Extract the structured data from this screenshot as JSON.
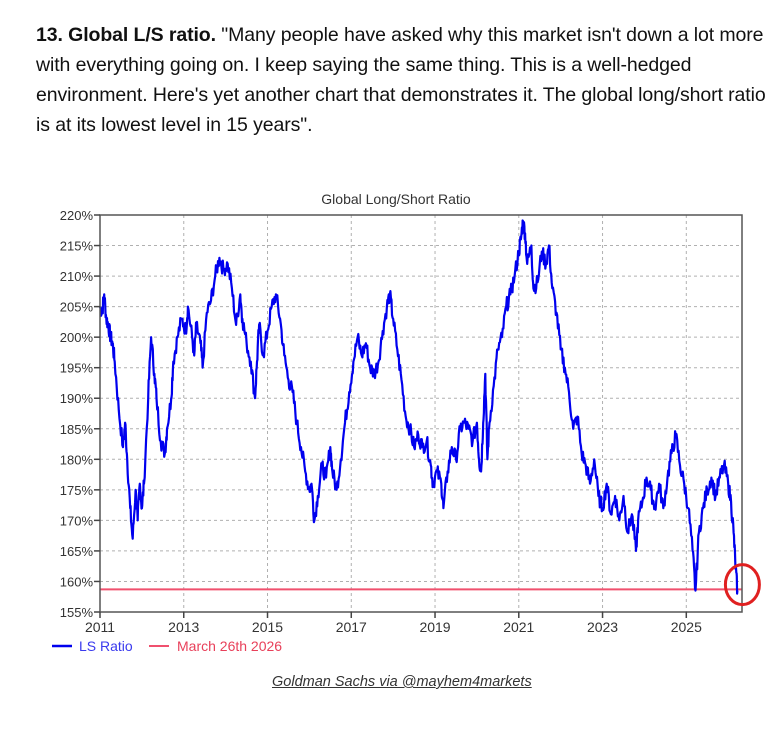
{
  "article": {
    "heading": "13. Global L/S ratio.",
    "quote": " \"Many people have asked why this market isn't down a lot more with everything going on. I keep saying the same thing. This is a well-hedged environment. Here's yet another chart that demonstrates it. The global long/short ratio is at its lowest level in 15 years\"."
  },
  "credit": "Goldman Sachs via @mayhem4markets",
  "colors": {
    "series": "#0000ee",
    "reference": "#f0506e",
    "highlight": "#e02020",
    "grid": "#b0b0b0",
    "axis": "#444444"
  },
  "chart_data": {
    "type": "line",
    "title": "Global Long/Short Ratio",
    "xlabel": "",
    "ylabel": "",
    "xlim": [
      2011,
      2026.33
    ],
    "ylim": [
      155,
      220
    ],
    "x_ticks": [
      "2011",
      "2013",
      "2015",
      "2017",
      "2019",
      "2021",
      "2023",
      "2025"
    ],
    "x_tick_values": [
      2011,
      2013,
      2015,
      2017,
      2019,
      2021,
      2023,
      2025
    ],
    "y_ticks": [
      "155%",
      "160%",
      "165%",
      "170%",
      "175%",
      "180%",
      "185%",
      "190%",
      "195%",
      "200%",
      "205%",
      "210%",
      "215%",
      "220%"
    ],
    "y_tick_values": [
      155,
      160,
      165,
      170,
      175,
      180,
      185,
      190,
      195,
      200,
      205,
      210,
      215,
      220
    ],
    "grid": true,
    "legend": {
      "position": "bottom-left",
      "entries": [
        "LS Ratio",
        "March 26th 2026"
      ]
    },
    "series": [
      {
        "name": "LS Ratio",
        "points": [
          [
            2011.0,
            205
          ],
          [
            2011.05,
            204
          ],
          [
            2011.1,
            207
          ],
          [
            2011.15,
            203
          ],
          [
            2011.2,
            202
          ],
          [
            2011.25,
            200
          ],
          [
            2011.3,
            199
          ],
          [
            2011.35,
            196
          ],
          [
            2011.45,
            188
          ],
          [
            2011.55,
            182
          ],
          [
            2011.6,
            186
          ],
          [
            2011.65,
            180
          ],
          [
            2011.72,
            172
          ],
          [
            2011.78,
            167
          ],
          [
            2011.85,
            175
          ],
          [
            2011.9,
            170
          ],
          [
            2011.95,
            176
          ],
          [
            2012.0,
            172
          ],
          [
            2012.05,
            176
          ],
          [
            2012.15,
            190
          ],
          [
            2012.22,
            200
          ],
          [
            2012.3,
            194
          ],
          [
            2012.35,
            190
          ],
          [
            2012.45,
            183
          ],
          [
            2012.55,
            181
          ],
          [
            2012.6,
            185
          ],
          [
            2012.7,
            190
          ],
          [
            2012.75,
            196
          ],
          [
            2012.85,
            200
          ],
          [
            2012.95,
            203
          ],
          [
            2013.05,
            201
          ],
          [
            2013.1,
            205
          ],
          [
            2013.2,
            200
          ],
          [
            2013.25,
            197
          ],
          [
            2013.3,
            202
          ],
          [
            2013.4,
            199
          ],
          [
            2013.45,
            195
          ],
          [
            2013.55,
            204
          ],
          [
            2013.65,
            206
          ],
          [
            2013.75,
            210
          ],
          [
            2013.85,
            213
          ],
          [
            2013.95,
            211
          ],
          [
            2014.05,
            212
          ],
          [
            2014.15,
            208
          ],
          [
            2014.25,
            202
          ],
          [
            2014.35,
            207
          ],
          [
            2014.4,
            203
          ],
          [
            2014.5,
            199
          ],
          [
            2014.6,
            196
          ],
          [
            2014.7,
            190
          ],
          [
            2014.75,
            196
          ],
          [
            2014.8,
            202
          ],
          [
            2014.9,
            197
          ],
          [
            2015.0,
            201
          ],
          [
            2015.1,
            205
          ],
          [
            2015.2,
            207
          ],
          [
            2015.3,
            203
          ],
          [
            2015.4,
            197
          ],
          [
            2015.5,
            193
          ],
          [
            2015.6,
            191
          ],
          [
            2015.7,
            186
          ],
          [
            2015.8,
            182
          ],
          [
            2015.9,
            178
          ],
          [
            2016.0,
            175
          ],
          [
            2016.05,
            176
          ],
          [
            2016.12,
            170
          ],
          [
            2016.2,
            174
          ],
          [
            2016.3,
            179
          ],
          [
            2016.4,
            177
          ],
          [
            2016.5,
            182
          ],
          [
            2016.55,
            178
          ],
          [
            2016.65,
            175
          ],
          [
            2016.75,
            180
          ],
          [
            2016.85,
            186
          ],
          [
            2016.95,
            191
          ],
          [
            2017.05,
            196
          ],
          [
            2017.15,
            200
          ],
          [
            2017.25,
            197
          ],
          [
            2017.35,
            199
          ],
          [
            2017.45,
            195
          ],
          [
            2017.55,
            194
          ],
          [
            2017.65,
            196
          ],
          [
            2017.75,
            201
          ],
          [
            2017.85,
            205
          ],
          [
            2017.92,
            207
          ],
          [
            2018.0,
            203
          ],
          [
            2018.1,
            198
          ],
          [
            2018.2,
            193
          ],
          [
            2018.3,
            187
          ],
          [
            2018.4,
            185
          ],
          [
            2018.5,
            182
          ],
          [
            2018.6,
            184
          ],
          [
            2018.7,
            182
          ],
          [
            2018.8,
            183
          ],
          [
            2018.9,
            179
          ],
          [
            2018.95,
            176
          ],
          [
            2019.05,
            178
          ],
          [
            2019.15,
            176
          ],
          [
            2019.2,
            172
          ],
          [
            2019.3,
            178
          ],
          [
            2019.4,
            182
          ],
          [
            2019.5,
            180
          ],
          [
            2019.6,
            185
          ],
          [
            2019.7,
            186
          ],
          [
            2019.8,
            185
          ],
          [
            2019.9,
            183
          ],
          [
            2020.0,
            186
          ],
          [
            2020.05,
            180
          ],
          [
            2020.1,
            178
          ],
          [
            2020.15,
            186
          ],
          [
            2020.2,
            194
          ],
          [
            2020.25,
            180
          ],
          [
            2020.3,
            186
          ],
          [
            2020.4,
            192
          ],
          [
            2020.5,
            198
          ],
          [
            2020.6,
            200
          ],
          [
            2020.7,
            205
          ],
          [
            2020.8,
            207
          ],
          [
            2020.9,
            210
          ],
          [
            2021.0,
            214
          ],
          [
            2021.05,
            216
          ],
          [
            2021.1,
            219
          ],
          [
            2021.15,
            217
          ],
          [
            2021.2,
            212
          ],
          [
            2021.3,
            215
          ],
          [
            2021.35,
            208
          ],
          [
            2021.45,
            209
          ],
          [
            2021.55,
            214
          ],
          [
            2021.65,
            212
          ],
          [
            2021.72,
            215
          ],
          [
            2021.8,
            208
          ],
          [
            2021.9,
            204
          ],
          [
            2022.0,
            198
          ],
          [
            2022.1,
            195
          ],
          [
            2022.2,
            191
          ],
          [
            2022.3,
            185
          ],
          [
            2022.4,
            187
          ],
          [
            2022.5,
            181
          ],
          [
            2022.6,
            179
          ],
          [
            2022.7,
            176
          ],
          [
            2022.8,
            180
          ],
          [
            2022.9,
            174
          ],
          [
            2023.0,
            172
          ],
          [
            2023.1,
            176
          ],
          [
            2023.2,
            171
          ],
          [
            2023.3,
            174
          ],
          [
            2023.4,
            170
          ],
          [
            2023.5,
            174
          ],
          [
            2023.6,
            168
          ],
          [
            2023.7,
            171
          ],
          [
            2023.8,
            165
          ],
          [
            2023.85,
            170
          ],
          [
            2023.95,
            173
          ],
          [
            2024.05,
            177
          ],
          [
            2024.15,
            175
          ],
          [
            2024.25,
            172
          ],
          [
            2024.35,
            176
          ],
          [
            2024.45,
            172
          ],
          [
            2024.55,
            177
          ],
          [
            2024.65,
            181
          ],
          [
            2024.75,
            184
          ],
          [
            2024.85,
            179
          ],
          [
            2024.95,
            176
          ],
          [
            2025.05,
            172
          ],
          [
            2025.15,
            165
          ],
          [
            2025.22,
            158.5
          ],
          [
            2025.3,
            168
          ],
          [
            2025.4,
            172
          ],
          [
            2025.5,
            175
          ],
          [
            2025.6,
            177
          ],
          [
            2025.7,
            174
          ],
          [
            2025.8,
            177
          ],
          [
            2025.9,
            179
          ],
          [
            2026.0,
            176
          ],
          [
            2026.07,
            173
          ],
          [
            2026.13,
            168
          ],
          [
            2026.18,
            162
          ],
          [
            2026.22,
            158.5
          ]
        ]
      },
      {
        "name": "March 26th 2026",
        "points": [
          [
            2011.0,
            158.7
          ],
          [
            2026.33,
            158.7
          ]
        ]
      }
    ]
  }
}
